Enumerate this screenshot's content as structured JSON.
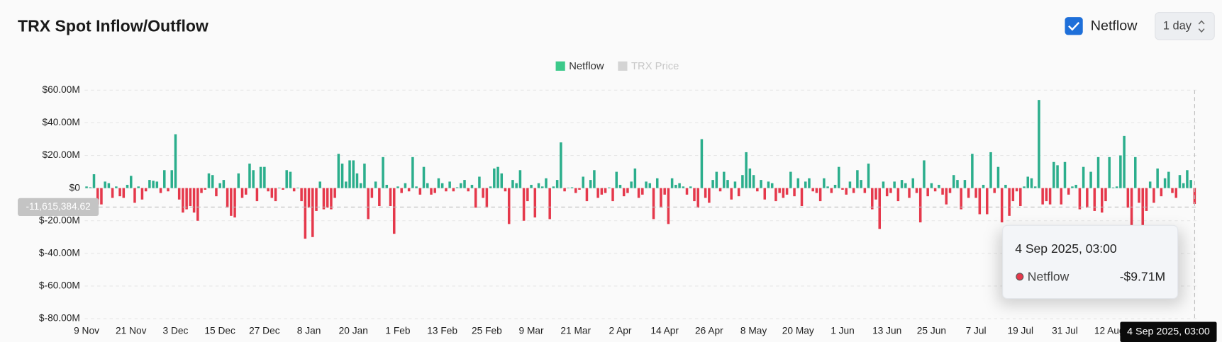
{
  "header": {
    "title": "TRX Spot Inflow/Outflow",
    "toggle": "Netflow",
    "interval": "1 day"
  },
  "chart_data": {
    "type": "bar",
    "categories": [
      "9 Nov",
      null,
      null,
      null,
      null,
      null,
      null,
      null,
      null,
      null,
      null,
      null,
      "21 Nov",
      null,
      null,
      null,
      null,
      null,
      null,
      null,
      null,
      null,
      null,
      null,
      "3 Dec",
      null,
      null,
      null,
      null,
      null,
      null,
      null,
      null,
      null,
      null,
      null,
      "15 Dec",
      null,
      null,
      null,
      null,
      null,
      null,
      null,
      null,
      null,
      null,
      null,
      "27 Dec",
      null,
      null,
      null,
      null,
      null,
      null,
      null,
      null,
      null,
      null,
      null,
      "8 Jan",
      null,
      null,
      null,
      null,
      null,
      null,
      null,
      null,
      null,
      null,
      null,
      "20 Jan",
      null,
      null,
      null,
      null,
      null,
      null,
      null,
      null,
      null,
      null,
      null,
      "1 Feb",
      null,
      null,
      null,
      null,
      null,
      null,
      null,
      null,
      null,
      null,
      null,
      "13 Feb",
      null,
      null,
      null,
      null,
      null,
      null,
      null,
      null,
      null,
      null,
      null,
      "25 Feb",
      null,
      null,
      null,
      null,
      null,
      null,
      null,
      null,
      null,
      null,
      null,
      "9 Mar",
      null,
      null,
      null,
      null,
      null,
      null,
      null,
      null,
      null,
      null,
      null,
      "21 Mar",
      null,
      null,
      null,
      null,
      null,
      null,
      null,
      null,
      null,
      null,
      null,
      "2 Apr",
      null,
      null,
      null,
      null,
      null,
      null,
      null,
      null,
      null,
      null,
      null,
      "14 Apr",
      null,
      null,
      null,
      null,
      null,
      null,
      null,
      null,
      null,
      null,
      null,
      "26 Apr",
      null,
      null,
      null,
      null,
      null,
      null,
      null,
      null,
      null,
      null,
      null,
      "8 May",
      null,
      null,
      null,
      null,
      null,
      null,
      null,
      null,
      null,
      null,
      null,
      "20 May",
      null,
      null,
      null,
      null,
      null,
      null,
      null,
      null,
      null,
      null,
      null,
      "1 Jun",
      null,
      null,
      null,
      null,
      null,
      null,
      null,
      null,
      null,
      null,
      null,
      "13 Jun",
      null,
      null,
      null,
      null,
      null,
      null,
      null,
      null,
      null,
      null,
      null,
      "25 Jun",
      null,
      null,
      null,
      null,
      null,
      null,
      null,
      null,
      null,
      null,
      null,
      "7 Jul",
      null,
      null,
      null,
      null,
      null,
      null,
      null,
      null,
      null,
      null,
      null,
      "19 Jul",
      null,
      null,
      null,
      null,
      null,
      null,
      null,
      null,
      null,
      null,
      null,
      "31 Jul",
      null,
      null,
      null,
      null,
      null,
      null,
      null,
      null,
      null,
      null,
      null,
      "12 Aug",
      null,
      null,
      null,
      null,
      null,
      null,
      null,
      null,
      null,
      null,
      null,
      null,
      null,
      null,
      null,
      null,
      null,
      null,
      null,
      null,
      null,
      null,
      null
    ],
    "series": [
      {
        "name": "Netflow",
        "positive_color": "#2bae8c",
        "negative_color": "#e5384b",
        "legend_color": "#3cc98a",
        "visible": true,
        "values": [
          1000000.0,
          500000.0,
          8500000.0,
          -10000000.0,
          -10000000.0,
          4000000.0,
          3000000.0,
          -6000000.0,
          1000000.0,
          -5000000.0,
          -6000000.0,
          2000000.0,
          7500000.0,
          -9000000.0,
          1000000.0,
          -7000000.0,
          -2000000.0,
          5000000.0,
          4500000.0,
          4000000.0,
          -3000000.0,
          11000000.0,
          -2000000.0,
          11000000.0,
          33000000.0,
          -7000000.0,
          -15000000.0,
          -13000000.0,
          -11000000.0,
          -15000000.0,
          -20000000.0,
          -3000000.0,
          -1000000.0,
          9000000.0,
          8000000.0,
          -5000000.0,
          3000000.0,
          5000000.0,
          -12000000.0,
          -17000000.0,
          -18000000.0,
          9000000.0,
          -6000000.0,
          -4000000.0,
          15000000.0,
          11000000.0,
          -8000000.0,
          13000000.0,
          13000000.0,
          -2000000.0,
          -6000000.0,
          -8000000.0,
          300000.0,
          -1000000.0,
          11000000.0,
          10000000.0,
          -2000000.0,
          300000.0,
          -8000000.0,
          -31000000.0,
          -12000000.0,
          -30000000.0,
          -14000000.0,
          4000000.0,
          -13000000.0,
          -12000000.0,
          -13000000.0,
          -6000000.0,
          21000000.0,
          15000000.0,
          4000000.0,
          17000000.0,
          17000000.0,
          9000000.0,
          3000000.0,
          15000000.0,
          -19000000.0,
          -6000000.0,
          4000000.0,
          -11000000.0,
          19000000.0,
          2000000.0,
          -11000000.0,
          -28000000.0,
          1000000.0,
          -3000000.0,
          3000000.0,
          -2000000.0,
          19000000.0,
          1000000.0,
          -4000000.0,
          13000000.0,
          3000000.0,
          -4000000.0,
          -3000000.0,
          6000000.0,
          3000000.0,
          -2000000.0,
          4000000.0,
          -2000000.0,
          500000.0,
          3000000.0,
          5000000.0,
          -2000000.0,
          2000000.0,
          -12000000.0,
          7000000.0,
          -6000000.0,
          -12000000.0,
          1000000.0,
          12000000.0,
          13000000.0,
          9000000.0,
          -2000000.0,
          -22000000.0,
          5000000.0,
          3000000.0,
          11000000.0,
          -20000000.0,
          -8000000.0,
          2000000.0,
          -18000000.0,
          3000000.0,
          1000000.0,
          6000000.0,
          -19000000.0,
          1000000.0,
          5000000.0,
          28000000.0,
          -2000000.0,
          300000.0,
          500000.0,
          -3000000.0,
          -1000000.0,
          7000000.0,
          -8000000.0,
          5000000.0,
          11000000.0,
          -6000000.0,
          -4000000.0,
          -3000000.0,
          400000.0,
          -8000000.0,
          10000000.0,
          2000000.0,
          -5000000.0,
          -3000000.0,
          4000000.0,
          12000000.0,
          -6000000.0,
          -4000000.0,
          4000000.0,
          3000000.0,
          -19000000.0,
          6000000.0,
          -12000000.0,
          -4000000.0,
          -22000000.0,
          6000000.0,
          2000000.0,
          3000000.0,
          1000000.0,
          -4000000.0,
          1000000.0,
          -8000000.0,
          -12000000.0,
          30000000.0,
          -6000000.0,
          -9000000.0,
          5000000.0,
          10000000.0,
          -2000000.0,
          10000000.0,
          5000000.0,
          -7000000.0,
          4000000.0,
          -5000000.0,
          8000000.0,
          22000000.0,
          12000000.0,
          8000000.0,
          -2000000.0,
          5000000.0,
          -7000000.0,
          4000000.0,
          3000000.0,
          -8000000.0,
          -3000000.0,
          -6000000.0,
          -4000000.0,
          10000000.0,
          -5000000.0,
          6000000.0,
          -11000000.0,
          4000000.0,
          6000000.0,
          -2000000.0,
          -3000000.0,
          -8000000.0,
          6000000.0,
          1000000.0,
          -3000000.0,
          2000000.0,
          13000000.0,
          -1000000.0,
          -4000000.0,
          4000000.0,
          -3000000.0,
          11000000.0,
          5000000.0,
          -3000000.0,
          15000000.0,
          -13000000.0,
          -7000000.0,
          -25000000.0,
          4000000.0,
          -5000000.0,
          -3000000.0,
          4000000.0,
          -8000000.0,
          5000000.0,
          3000000.0,
          -6000000.0,
          6000000.0,
          -3000000.0,
          -21000000.0,
          17000000.0,
          -5000000.0,
          3000000.0,
          -2000000.0,
          2000000.0,
          -4000000.0,
          -10000000.0,
          -3000000.0,
          8000000.0,
          5000000.0,
          -13000000.0,
          5000000.0,
          -6000000.0,
          21000000.0,
          -6000000.0,
          -16000000.0,
          2000000.0,
          -16000000.0,
          22000000.0,
          -3000000.0,
          13000000.0,
          -21000000.0,
          2000000.0,
          -17000000.0,
          -8000000.0,
          -2000000.0,
          -11000000.0,
          1000000.0,
          7000000.0,
          6000000.0,
          1000000.0,
          54000000.0,
          -10000000.0,
          -8000000.0,
          -10000000.0,
          16000000.0,
          14000000.0,
          -10000000.0,
          16000000.0,
          -4000000.0,
          1000000.0,
          2000000.0,
          -13000000.0,
          13000000.0,
          -12000000.0,
          10000000.0,
          -14000000.0,
          19000000.0,
          -15000000.0,
          -8000000.0,
          19000000.0,
          400000.0,
          1000000.0,
          20000000.0,
          32000000.0,
          -12000000.0,
          -23000000.0,
          19000000.0,
          -9000000.0,
          -23000000.0,
          -14000000.0,
          4000000.0,
          -9000000.0,
          12000000.0,
          -5000000.0,
          6000000.0,
          10000000.0,
          -3000000.0,
          -6000000.0,
          8000000.0,
          3000000.0,
          11000000.0,
          5000000.0,
          -9710000.0
        ]
      },
      {
        "name": "TRX Price",
        "legend_color": "#d4d4d4",
        "visible": false
      }
    ],
    "ylim": [
      -80000000,
      60000000
    ],
    "yticks": [
      {
        "value": -80000000,
        "label": "$-80.00M"
      },
      {
        "value": -60000000,
        "label": "$-60.00M"
      },
      {
        "value": -40000000,
        "label": "$-40.00M"
      },
      {
        "value": -20000000,
        "label": "$-20.00M"
      },
      {
        "value": 0,
        "label": "$0"
      },
      {
        "value": 20000000,
        "label": "$20.00M"
      },
      {
        "value": 40000000,
        "label": "$40.00M"
      },
      {
        "value": 60000000,
        "label": "$60.00M"
      }
    ],
    "grid": true,
    "crosshair": {
      "y": {
        "value": -11615384.62,
        "label": "-11,615,384.62"
      },
      "x_label": "4 Sep 2025, 03:00"
    },
    "tooltip": {
      "title": "4 Sep 2025, 03:00",
      "series": "Netflow",
      "label": "-$9.71M"
    }
  }
}
